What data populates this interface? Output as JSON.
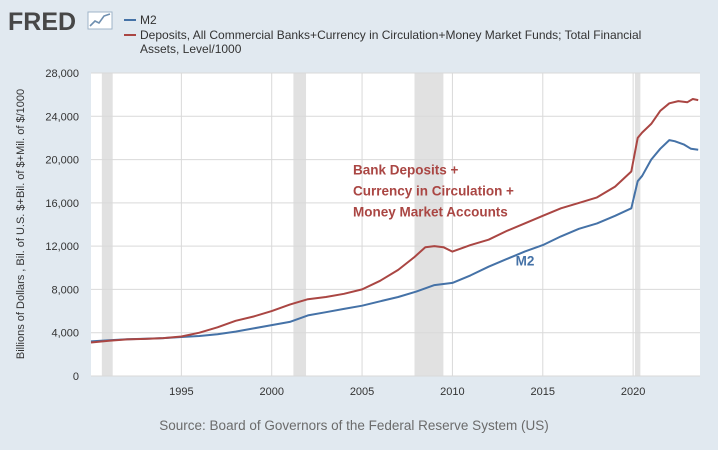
{
  "header": {
    "logo_text": "FRED",
    "legend": [
      {
        "label": "M2",
        "color": "#4572a7"
      },
      {
        "label_lines": [
          "Deposits, All Commercial Banks+Currency in Circulation+Money Market Funds; Total Financial",
          "Assets, Level/1000"
        ],
        "color": "#aa4643"
      }
    ]
  },
  "footer": {
    "source": "Source: Board of Governors of the Federal Reserve System (US)"
  },
  "colors": {
    "background": "#e1e9f0",
    "plot": "#ffffff",
    "grid": "#d9d9d9",
    "recession": "#e1e1e1",
    "m2": "#4572a7",
    "deposits": "#aa4643"
  },
  "chart_data": {
    "type": "line",
    "ylabel": "Billions of Dollars , Bil. of U.S. $+Bil. of $+Mil. of $/1000",
    "xlabel": "",
    "xlim": [
      1990,
      2023.7
    ],
    "ylim": [
      0,
      28000
    ],
    "x_ticks": [
      1995,
      2000,
      2005,
      2010,
      2015,
      2020
    ],
    "y_ticks": [
      0,
      4000,
      8000,
      12000,
      16000,
      20000,
      24000,
      28000
    ],
    "y_tick_labels": [
      "0",
      "4,000",
      "8,000",
      "12,000",
      "16,000",
      "20,000",
      "24,000",
      "28,000"
    ],
    "grid": true,
    "recessions": [
      [
        1990.6,
        1991.2
      ],
      [
        2001.2,
        2001.9
      ],
      [
        2007.9,
        2009.5
      ],
      [
        2020.1,
        2020.4
      ]
    ],
    "annotations": [
      {
        "lines": [
          "Bank Deposits +",
          "Currency in Circulation +",
          "Money Market Accounts"
        ],
        "color": "#aa4643",
        "x": 2004.5,
        "y": 18600
      },
      {
        "lines": [
          "M2"
        ],
        "color": "#4572a7",
        "x": 2013.5,
        "y": 10200
      }
    ],
    "series": [
      {
        "name": "M2",
        "color": "#4572a7",
        "x": [
          1990,
          1991,
          1992,
          1993,
          1994,
          1995,
          1996,
          1997,
          1998,
          1999,
          2000,
          2001,
          2002,
          2003,
          2004,
          2005,
          2006,
          2007,
          2008,
          2009,
          2010,
          2011,
          2012,
          2013,
          2014,
          2015,
          2016,
          2017,
          2018,
          2019,
          2019.9,
          2020.25,
          2020.5,
          2021,
          2021.5,
          2022,
          2022.3,
          2022.8,
          2023.2,
          2023.6
        ],
        "values": [
          3200,
          3300,
          3400,
          3450,
          3500,
          3600,
          3700,
          3850,
          4100,
          4400,
          4700,
          5000,
          5600,
          5900,
          6200,
          6500,
          6900,
          7300,
          7800,
          8400,
          8600,
          9300,
          10100,
          10800,
          11500,
          12100,
          12900,
          13600,
          14100,
          14800,
          15500,
          18000,
          18500,
          20000,
          21000,
          21800,
          21700,
          21400,
          21000,
          20900
        ]
      },
      {
        "name": "Deposits, All Commercial Banks+Currency in Circulation+Money Market Funds; Total Financial Assets, Level/1000",
        "color": "#aa4643",
        "x": [
          1990,
          1991,
          1992,
          1993,
          1994,
          1995,
          1996,
          1997,
          1998,
          1999,
          2000,
          2001,
          2002,
          2003,
          2004,
          2005,
          2006,
          2007,
          2007.9,
          2008.5,
          2009,
          2009.5,
          2010,
          2010.5,
          2011,
          2012,
          2013,
          2014,
          2015,
          2016,
          2017,
          2018,
          2019,
          2019.9,
          2020.25,
          2020.5,
          2021,
          2021.5,
          2022,
          2022.5,
          2023,
          2023.3,
          2023.6
        ],
        "values": [
          3100,
          3250,
          3380,
          3430,
          3500,
          3650,
          4000,
          4500,
          5100,
          5500,
          6000,
          6600,
          7100,
          7300,
          7600,
          8000,
          8800,
          9800,
          11000,
          11900,
          12000,
          11900,
          11500,
          11800,
          12100,
          12600,
          13400,
          14100,
          14800,
          15500,
          16000,
          16500,
          17500,
          18900,
          22000,
          22500,
          23300,
          24500,
          25200,
          25400,
          25300,
          25600,
          25500
        ]
      }
    ]
  }
}
